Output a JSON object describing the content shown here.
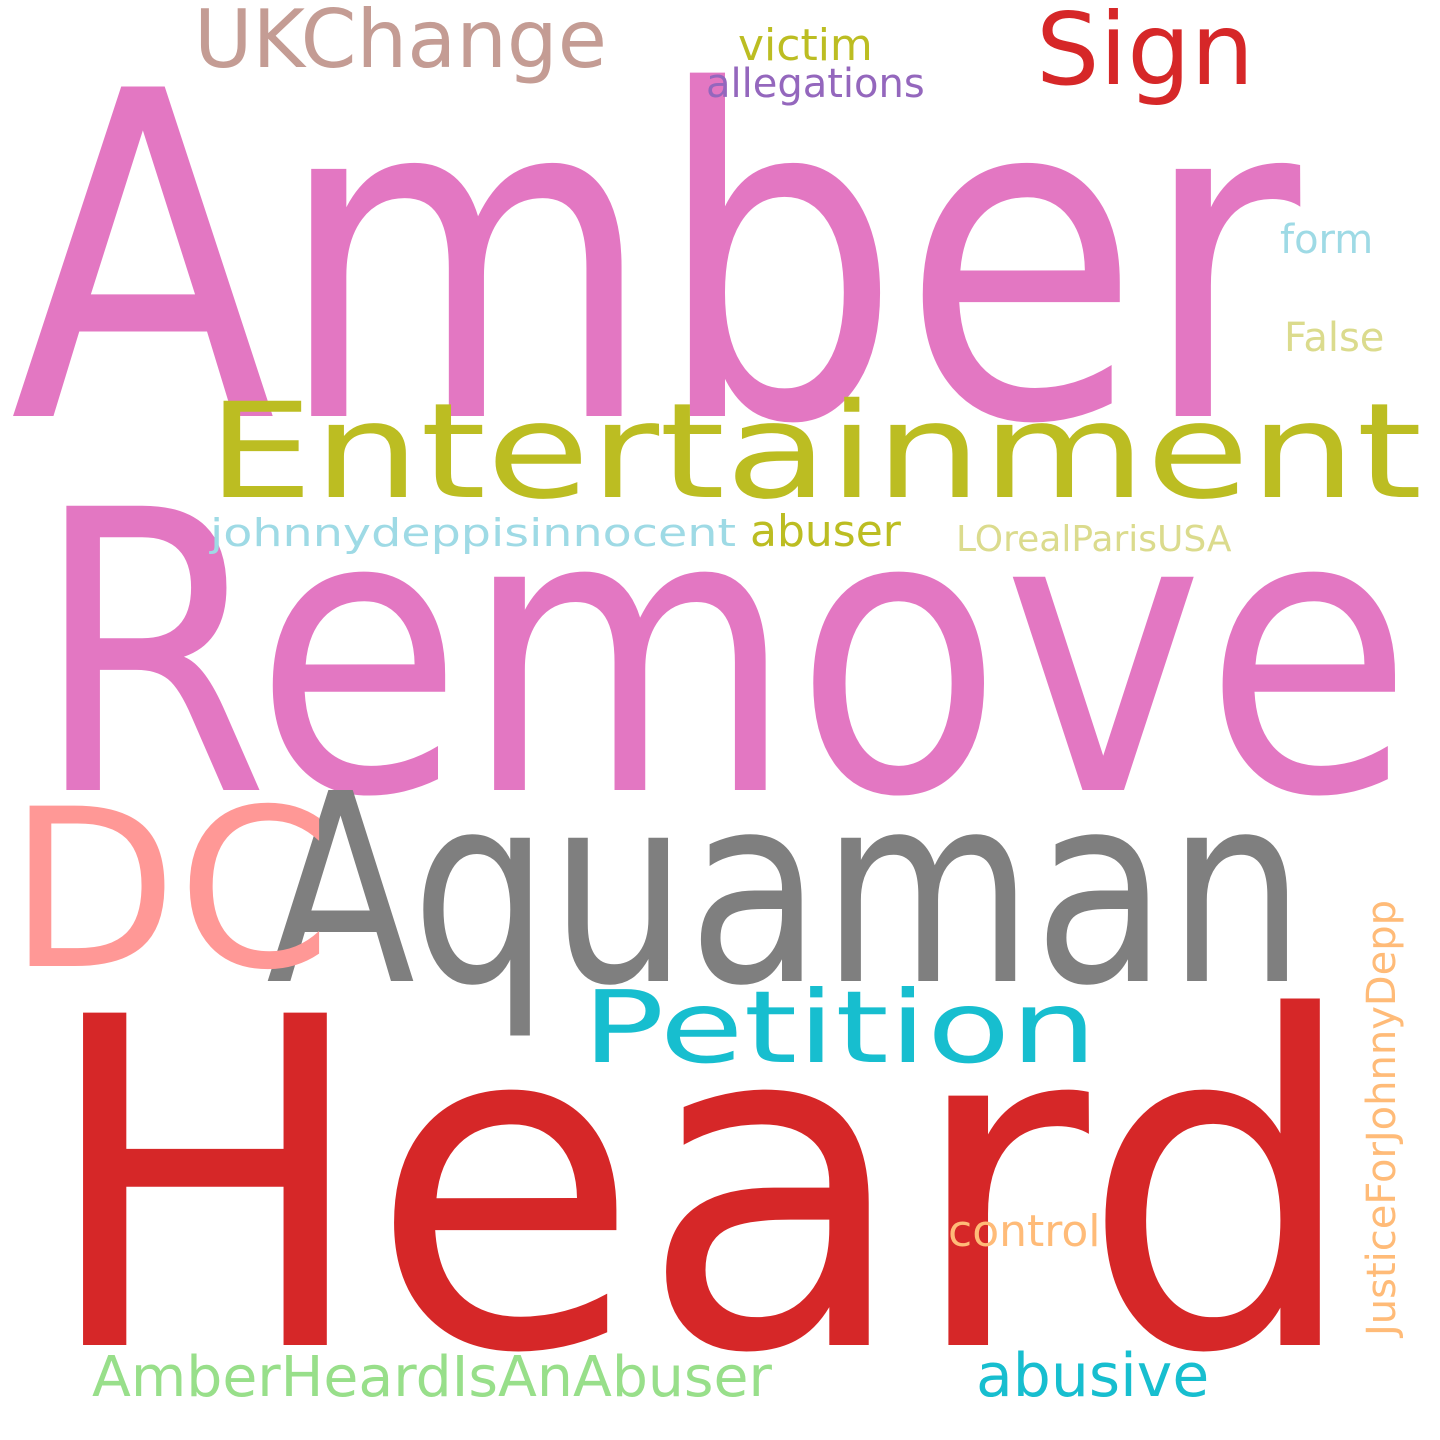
{
  "words": {
    "amber": {
      "text": "Amber",
      "color": "#e377c2"
    },
    "remove": {
      "text": "Remove",
      "color": "#e377c2"
    },
    "heard": {
      "text": "Heard",
      "color": "#d62728"
    },
    "aquaman": {
      "text": "Aquaman",
      "color": "#7f7f7f"
    },
    "dc": {
      "text": "DC",
      "color": "#ff9896"
    },
    "entertainment": {
      "text": "Entertainment",
      "color": "#bcbd22"
    },
    "petition": {
      "text": "Petition",
      "color": "#17becf"
    },
    "sign": {
      "text": "Sign",
      "color": "#d62728"
    },
    "ukchange": {
      "text": "UKChange",
      "color": "#c49c94"
    },
    "victim": {
      "text": "victim",
      "color": "#bcbd22"
    },
    "allegations": {
      "text": "allegations",
      "color": "#9467bd"
    },
    "form": {
      "text": "form",
      "color": "#9edae5"
    },
    "false": {
      "text": "False",
      "color": "#dbdb8d"
    },
    "johnnydeppisinnocent": {
      "text": "johnnydeppisinnocent",
      "color": "#9edae5"
    },
    "abuser": {
      "text": "abuser",
      "color": "#bcbd22"
    },
    "lorealparisusa": {
      "text": "LOrealParisUSA",
      "color": "#dbdb8d"
    },
    "control": {
      "text": "control",
      "color": "#ffbb78"
    },
    "amberheardisanabuser": {
      "text": "AmberHeardIsAnAbuser",
      "color": "#98df8a"
    },
    "abusive": {
      "text": "abusive",
      "color": "#17becf"
    },
    "justiceforjohnnydepp": {
      "text": "JusticeForJohnnyDepp",
      "color": "#ffbb78"
    }
  }
}
